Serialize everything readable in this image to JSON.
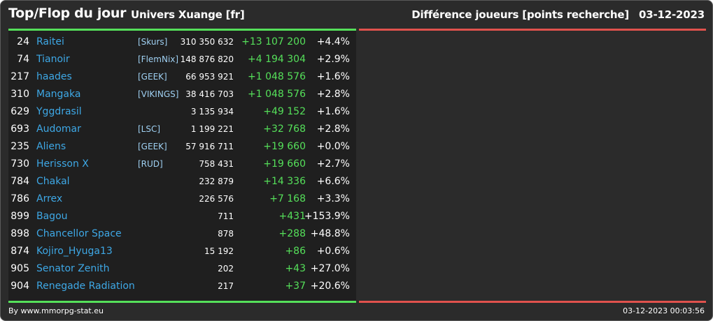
{
  "header": {
    "title": "Top/Flop du jour",
    "subtitle": "Univers Xuange [fr]",
    "stat_label": "Différence joueurs [points recherche]",
    "date": "03-12-2023"
  },
  "colors": {
    "background": "#2b2b2b",
    "panel": "#1f1f1f",
    "top_bar": "#55e05a",
    "flop_bar": "#e0524d",
    "player_name": "#3ea8e6",
    "diff_positive": "#55e05a"
  },
  "top_rows": [
    {
      "rank": "24",
      "name": "Raitei",
      "alliance": "[Skurs]",
      "points": "310 350 632",
      "diff": "+13 107 200",
      "pct": "+4.4%"
    },
    {
      "rank": "74",
      "name": "Tianoir",
      "alliance": "[FlemNix]",
      "points": "148 876 820",
      "diff": "+4 194 304",
      "pct": "+2.9%"
    },
    {
      "rank": "217",
      "name": "haades",
      "alliance": "[GEEK]",
      "points": "66 953 921",
      "diff": "+1 048 576",
      "pct": "+1.6%"
    },
    {
      "rank": "310",
      "name": "Mangaka",
      "alliance": "[VIKINGS]",
      "points": "38 416 703",
      "diff": "+1 048 576",
      "pct": "+2.8%"
    },
    {
      "rank": "629",
      "name": "Yggdrasil",
      "alliance": "",
      "points": "3 135 934",
      "diff": "+49 152",
      "pct": "+1.6%"
    },
    {
      "rank": "693",
      "name": "Audomar",
      "alliance": "[LSC]",
      "points": "1 199 221",
      "diff": "+32 768",
      "pct": "+2.8%"
    },
    {
      "rank": "235",
      "name": "Aliens",
      "alliance": "[GEEK]",
      "points": "57 916 711",
      "diff": "+19 660",
      "pct": "+0.0%"
    },
    {
      "rank": "730",
      "name": "Herisson X",
      "alliance": "[RUD]",
      "points": "758 431",
      "diff": "+19 660",
      "pct": "+2.7%"
    },
    {
      "rank": "784",
      "name": "Chakal",
      "alliance": "",
      "points": "232 879",
      "diff": "+14 336",
      "pct": "+6.6%"
    },
    {
      "rank": "786",
      "name": "Arrex",
      "alliance": "",
      "points": "226 576",
      "diff": "+7 168",
      "pct": "+3.3%"
    },
    {
      "rank": "899",
      "name": "Bagou",
      "alliance": "",
      "points": "711",
      "diff": "+431",
      "pct": "+153.9%"
    },
    {
      "rank": "898",
      "name": "Chancellor Space",
      "alliance": "",
      "points": "878",
      "diff": "+288",
      "pct": "+48.8%"
    },
    {
      "rank": "874",
      "name": "Kojiro_Hyuga13",
      "alliance": "",
      "points": "15 192",
      "diff": "+86",
      "pct": "+0.6%"
    },
    {
      "rank": "905",
      "name": "Senator Zenith",
      "alliance": "",
      "points": "202",
      "diff": "+43",
      "pct": "+27.0%"
    },
    {
      "rank": "904",
      "name": "Renegade Radiation",
      "alliance": "",
      "points": "217",
      "diff": "+37",
      "pct": "+20.6%"
    }
  ],
  "flop_rows": [],
  "footer": {
    "credit": "By www.mmorpg-stat.eu",
    "timestamp": "03-12-2023 00:03:56"
  }
}
